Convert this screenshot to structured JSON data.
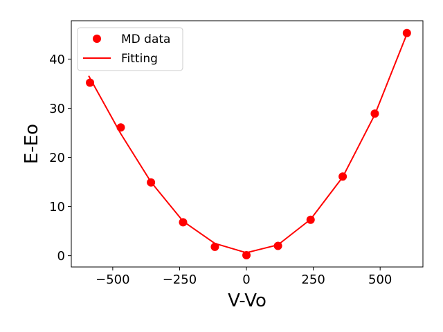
{
  "chart_data": {
    "type": "scatter",
    "title": "",
    "xlabel": "V-Vo",
    "ylabel": "E-Eo",
    "xlim": [
      -655,
      660
    ],
    "ylim": [
      -2.3,
      47.8
    ],
    "xticks": [
      -500,
      -250,
      0,
      250,
      500
    ],
    "xtick_labels": [
      "−500",
      "−250",
      "0",
      "250",
      "500"
    ],
    "yticks": [
      0,
      10,
      20,
      30,
      40
    ],
    "ytick_labels": [
      "0",
      "10",
      "20",
      "30",
      "40"
    ],
    "grid": false,
    "legend_position": "top-left",
    "series": [
      {
        "name": "MD data",
        "kind": "scatter",
        "color": "#ff0000",
        "x": [
          -585,
          -470,
          -357,
          -237,
          -118,
          0,
          118,
          240,
          360,
          480,
          600
        ],
        "y": [
          35.2,
          26.1,
          14.9,
          6.8,
          1.8,
          0.1,
          2.0,
          7.3,
          16.1,
          28.9,
          45.3
        ]
      },
      {
        "name": "Fitting",
        "kind": "line",
        "color": "#ff0000",
        "x": [
          -590,
          -470,
          -357,
          -237,
          -118,
          0,
          118,
          240,
          360,
          480,
          600
        ],
        "y": [
          36.6,
          24.8,
          15.0,
          7.0,
          2.5,
          0.6,
          2.2,
          7.4,
          16.0,
          28.7,
          45.1
        ]
      }
    ]
  }
}
